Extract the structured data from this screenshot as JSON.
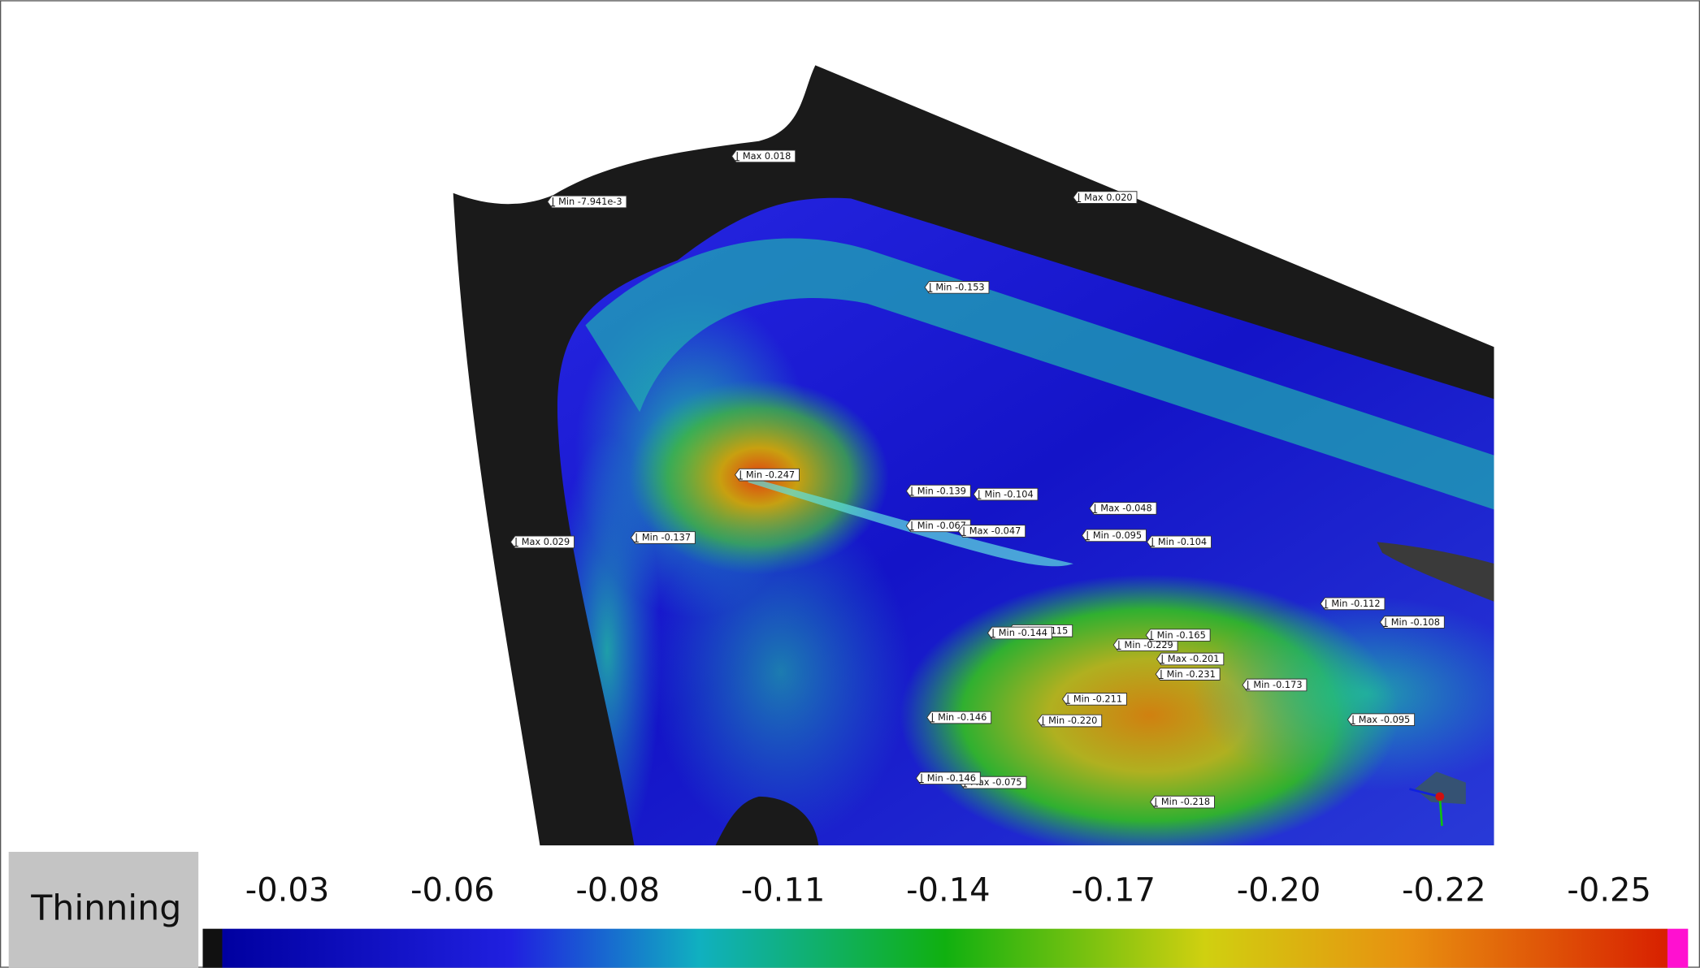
{
  "legend": {
    "title": "Thinning",
    "ticks": [
      "-0.03",
      "-0.06",
      "-0.08",
      "-0.11",
      "-0.14",
      "-0.17",
      "-0.20",
      "-0.22",
      "-0.25"
    ]
  },
  "annotations": [
    "Max 0.018",
    "Min -7.941e-3",
    "Max 0.020",
    "Min -0.153",
    "Min -0.247",
    "Min -0.139",
    "Min -0.104",
    "Max -0.048",
    "Min -0.067",
    "Max -0.047",
    "Min -0.095",
    "Min -0.104",
    "Max 0.029",
    "Min -0.137",
    "Min -0.112",
    "Min -0.108",
    "Min -0.115",
    "Min -0.144",
    "Min -0.229",
    "Min -0.165",
    "Max -0.201",
    "Min -0.231",
    "Min -0.173",
    "Min -0.211",
    "Min -0.146",
    "Min -0.220",
    "Max -0.095",
    "Max -0.075",
    "Min -0.146",
    "Min -0.218"
  ]
}
